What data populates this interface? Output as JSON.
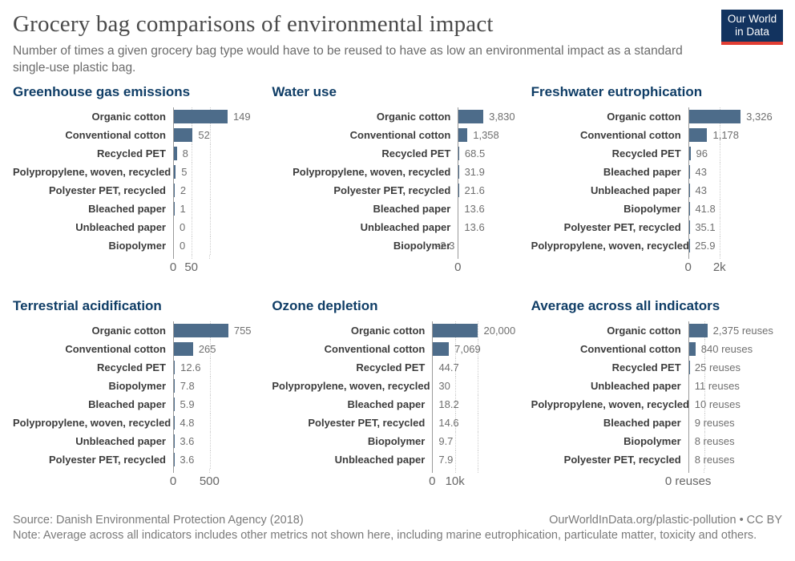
{
  "header": {
    "title": "Grocery bag comparisons of environmental impact",
    "subtitle": "Number of times a given grocery bag type would have to be reused to have as low an environmental impact as a standard single-use plastic bag.",
    "logo": {
      "line1": "Our World",
      "line2": "in Data"
    }
  },
  "colors": {
    "bar": "#4d6c8a",
    "panel_title": "#0f3d66",
    "logo_bg": "#12335f",
    "logo_accent": "#e13d33"
  },
  "chart_data": [
    {
      "type": "bar",
      "title": "Greenhouse gas emissions",
      "categories": [
        "Organic cotton",
        "Conventional cotton",
        "Recycled PET",
        "Polypropylene, woven, recycled",
        "Polyester PET, recycled",
        "Bleached paper",
        "Unbleached paper",
        "Biopolymer"
      ],
      "values": [
        149,
        52,
        8,
        5,
        2,
        1,
        0,
        0
      ],
      "value_labels": [
        "149",
        "52",
        "8",
        "5",
        "2",
        "1",
        "0",
        "0"
      ],
      "xlim": [
        0,
        250
      ],
      "gridlines": [
        50,
        100
      ],
      "ticks": [
        {
          "label": "0",
          "value": 0
        },
        {
          "label": "50",
          "value": 50
        }
      ],
      "legend": "none",
      "grid": "vertical-dotted"
    },
    {
      "type": "bar",
      "title": "Water use",
      "categories": [
        "Organic cotton",
        "Conventional cotton",
        "Recycled PET",
        "Polypropylene, woven, recycled",
        "Polyester PET, recycled",
        "Bleached paper",
        "Unbleached paper",
        "Biopolymer"
      ],
      "values": [
        3830,
        1358,
        68.5,
        31.9,
        21.6,
        13.6,
        13.6,
        -2.3
      ],
      "value_labels": [
        "3,830",
        "1,358",
        "68.5",
        "31.9",
        "21.6",
        "13.6",
        "13.6",
        "-2.3"
      ],
      "xlim": [
        0,
        10000
      ],
      "gridlines": [],
      "ticks": [
        {
          "label": "0",
          "value": 0
        }
      ],
      "legend": "none",
      "grid": "vertical-dotted"
    },
    {
      "type": "bar",
      "title": "Freshwater eutrophication",
      "categories": [
        "Organic cotton",
        "Conventional cotton",
        "Recycled PET",
        "Bleached paper",
        "Unbleached paper",
        "Biopolymer",
        "Polyester PET, recycled",
        "Polypropylene, woven, recycled"
      ],
      "values": [
        3326,
        1178,
        96,
        43,
        43,
        41.8,
        35.1,
        25.9
      ],
      "value_labels": [
        "3,326",
        "1,178",
        "96",
        "43",
        "43",
        "41.8",
        "35.1",
        "25.9"
      ],
      "xlim": [
        0,
        6000
      ],
      "gridlines": [
        2000
      ],
      "ticks": [
        {
          "label": "0",
          "value": 0
        },
        {
          "label": "2k",
          "value": 2000
        }
      ],
      "legend": "none",
      "grid": "vertical-dotted"
    },
    {
      "type": "bar",
      "title": "Terrestrial acidification",
      "categories": [
        "Organic cotton",
        "Conventional cotton",
        "Recycled PET",
        "Biopolymer",
        "Bleached paper",
        "Polypropylene, woven, recycled",
        "Unbleached paper",
        "Polyester PET, recycled"
      ],
      "values": [
        755,
        265,
        12.6,
        7.8,
        5.9,
        4.8,
        3.6,
        3.6
      ],
      "value_labels": [
        "755",
        "265",
        "12.6",
        "7.8",
        "5.9",
        "4.8",
        "3.6",
        "3.6"
      ],
      "xlim": [
        0,
        1250
      ],
      "gridlines": [
        500
      ],
      "ticks": [
        {
          "label": "0",
          "value": 0
        },
        {
          "label": "500",
          "value": 500
        }
      ],
      "legend": "none",
      "grid": "vertical-dotted"
    },
    {
      "type": "bar",
      "title": "Ozone depletion",
      "categories": [
        "Organic cotton",
        "Conventional cotton",
        "Recycled PET",
        "Polypropylene, woven, recycled",
        "Bleached paper",
        "Polyester PET, recycled",
        "Biopolymer",
        "Unbleached paper"
      ],
      "values": [
        20000,
        7069,
        44.7,
        30,
        18.2,
        14.6,
        9.7,
        7.9
      ],
      "value_labels": [
        "20,000",
        "7,069",
        "44.7",
        "30",
        "18.2",
        "14.6",
        "9.7",
        "7.9"
      ],
      "xlim": [
        0,
        40000
      ],
      "gridlines": [
        10000,
        20000
      ],
      "ticks": [
        {
          "label": "0",
          "value": 0
        },
        {
          "label": "10k",
          "value": 10000
        }
      ],
      "legend": "none",
      "grid": "vertical-dotted"
    },
    {
      "type": "bar",
      "title": "Average across all indicators",
      "categories": [
        "Organic cotton",
        "Conventional cotton",
        "Recycled PET",
        "Unbleached paper",
        "Polypropylene, woven, recycled",
        "Bleached paper",
        "Biopolymer",
        "Polyester PET, recycled"
      ],
      "values": [
        2375,
        840,
        25,
        11,
        10,
        9,
        8,
        8
      ],
      "value_labels": [
        "2,375 reuses",
        "840 reuses",
        "25 reuses",
        "11 reuses",
        "10 reuses",
        "9 reuses",
        "8 reuses",
        "8 reuses"
      ],
      "xlim": [
        0,
        12000
      ],
      "gridlines": [
        2000
      ],
      "ticks": [
        {
          "label": "0 reuses",
          "value": 0
        }
      ],
      "legend": "none",
      "grid": "vertical-dotted"
    }
  ],
  "footer": {
    "source": "Source: Danish Environmental Protection Agency (2018)",
    "link": "OurWorldInData.org/plastic-pollution • CC BY",
    "note": "Note: Average across all indicators includes other metrics not shown here, including marine eutrophication, particulate matter, toxicity and others."
  }
}
